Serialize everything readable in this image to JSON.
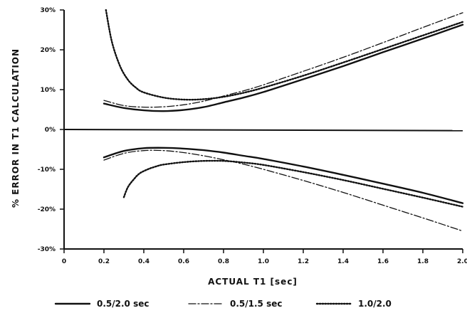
{
  "chart_data": {
    "type": "line",
    "xlabel": "ACTUAL T1 [sec]",
    "ylabel": "% ERROR IN T1 CALCULATION",
    "xlim": [
      0,
      2.0
    ],
    "ylim": [
      -30,
      30
    ],
    "x_ticks": [
      {
        "value": 0,
        "label": "0"
      },
      {
        "value": 0.2,
        "label": "0.2"
      },
      {
        "value": 0.4,
        "label": "0.4"
      },
      {
        "value": 0.6,
        "label": "0.6"
      },
      {
        "value": 0.8,
        "label": "0.8"
      },
      {
        "value": 1.0,
        "label": "1.0"
      },
      {
        "value": 1.2,
        "label": "1.2"
      },
      {
        "value": 1.4,
        "label": "1.4"
      },
      {
        "value": 1.6,
        "label": "1.6"
      },
      {
        "value": 1.8,
        "label": "1.8"
      },
      {
        "value": 2.0,
        "label": "2.0"
      }
    ],
    "y_ticks": [
      {
        "value": 30,
        "label": "30%"
      },
      {
        "value": 20,
        "label": "20%"
      },
      {
        "value": 10,
        "label": "10%"
      },
      {
        "value": 0,
        "label": "0%"
      },
      {
        "value": -10,
        "label": "-10%"
      },
      {
        "value": -20,
        "label": "-20%"
      },
      {
        "value": -30,
        "label": "-30%"
      }
    ],
    "reference_line": {
      "x": [
        0,
        2.0
      ],
      "y": [
        0,
        -0.3
      ]
    },
    "legend_position": "bottom",
    "series": [
      {
        "name": "0.5/2.0 sec",
        "style": "solid",
        "upper": {
          "x": [
            0.2,
            0.3,
            0.4,
            0.5,
            0.6,
            0.7,
            0.8,
            0.9,
            1.0,
            1.2,
            1.4,
            1.6,
            1.8,
            2.0
          ],
          "y": [
            6.5,
            5.4,
            4.8,
            4.6,
            4.9,
            5.6,
            6.8,
            8.0,
            9.4,
            12.6,
            15.9,
            19.4,
            22.8,
            26.3
          ]
        },
        "lower": {
          "x": [
            0.2,
            0.3,
            0.4,
            0.5,
            0.6,
            0.7,
            0.8,
            0.9,
            1.0,
            1.2,
            1.4,
            1.6,
            1.8,
            2.0
          ],
          "y": [
            -7.0,
            -5.4,
            -4.7,
            -4.6,
            -4.8,
            -5.2,
            -5.8,
            -6.6,
            -7.4,
            -9.3,
            -11.4,
            -13.6,
            -15.9,
            -18.5
          ]
        }
      },
      {
        "name": "0.5/1.5 sec",
        "style": "dash-dot",
        "upper": {
          "x": [
            0.2,
            0.3,
            0.4,
            0.5,
            0.6,
            0.7,
            0.8,
            0.9,
            1.0,
            1.2,
            1.4,
            1.6,
            1.8,
            2.0
          ],
          "y": [
            7.3,
            6.0,
            5.6,
            5.7,
            6.2,
            7.1,
            8.4,
            9.7,
            11.2,
            14.6,
            18.1,
            21.8,
            25.6,
            29.3
          ]
        },
        "lower": {
          "x": [
            0.2,
            0.3,
            0.4,
            0.5,
            0.6,
            0.7,
            0.8,
            0.9,
            1.0,
            1.2,
            1.4,
            1.6,
            1.8,
            2.0
          ],
          "y": [
            -7.7,
            -6.0,
            -5.3,
            -5.3,
            -5.8,
            -6.6,
            -7.6,
            -8.7,
            -10.0,
            -12.8,
            -15.8,
            -19.0,
            -22.2,
            -25.5
          ]
        }
      },
      {
        "name": "1.0/2.0",
        "style": "dotted",
        "upper": {
          "x": [
            0.21,
            0.24,
            0.28,
            0.32,
            0.36,
            0.4,
            0.5,
            0.6,
            0.7,
            0.8,
            0.9,
            1.0,
            1.2,
            1.4,
            1.6,
            1.8,
            2.0
          ],
          "y": [
            30,
            22.0,
            16.0,
            12.5,
            10.5,
            9.3,
            8.0,
            7.5,
            7.6,
            8.2,
            9.2,
            10.5,
            13.5,
            16.8,
            20.2,
            23.6,
            27.0
          ]
        },
        "lower": {
          "x": [
            0.3,
            0.32,
            0.35,
            0.38,
            0.42,
            0.46,
            0.5,
            0.6,
            0.7,
            0.8,
            0.9,
            1.0,
            1.2,
            1.4,
            1.6,
            1.8,
            2.0
          ],
          "y": [
            -17.0,
            -14.5,
            -12.5,
            -11.0,
            -10.0,
            -9.3,
            -8.8,
            -8.2,
            -7.9,
            -7.9,
            -8.3,
            -8.9,
            -10.7,
            -12.7,
            -14.9,
            -17.1,
            -19.4
          ]
        }
      }
    ]
  }
}
